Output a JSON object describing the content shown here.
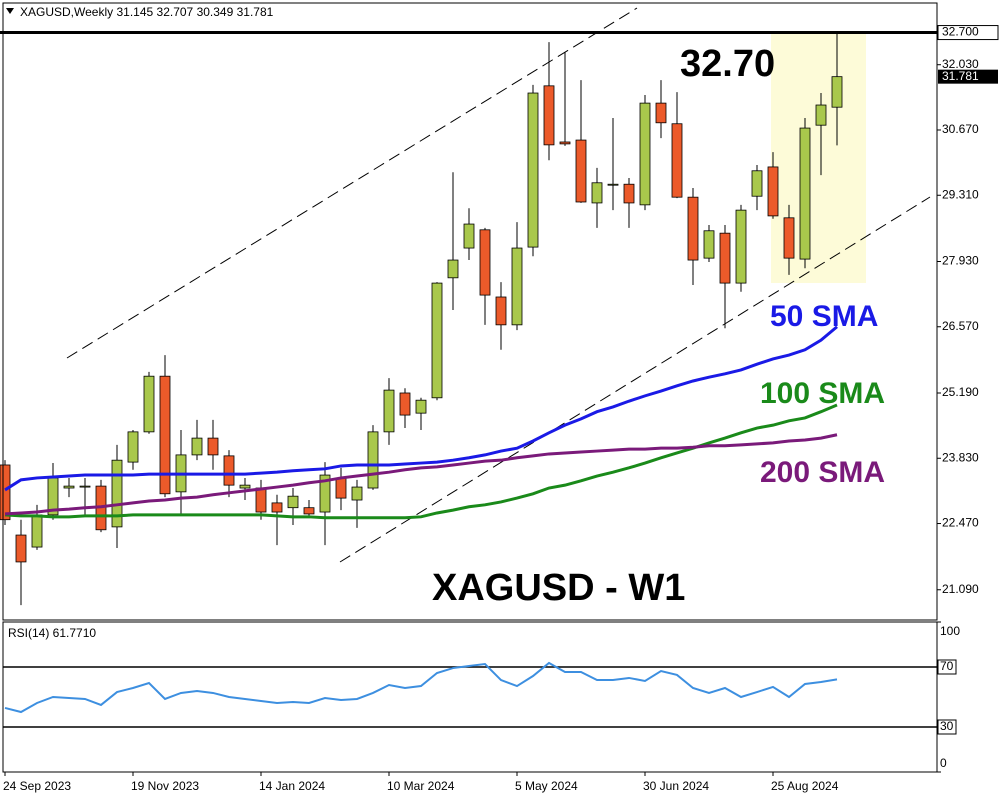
{
  "header": {
    "symbol": "XAGUSD,Weekly"
  },
  "chart_data": {
    "type": "candlestick",
    "categories": [
      "24 Sep 2023",
      null,
      null,
      null,
      null,
      null,
      null,
      null,
      "19 Nov 2023",
      null,
      null,
      null,
      null,
      null,
      null,
      null,
      "14 Jan 2024",
      null,
      null,
      null,
      null,
      null,
      null,
      null,
      "10 Mar 2024",
      null,
      null,
      null,
      null,
      null,
      null,
      null,
      "5 May 2024",
      null,
      null,
      null,
      null,
      null,
      null,
      null,
      "30 Jun 2024",
      null,
      null,
      null,
      null,
      null,
      null,
      null,
      "25 Aug 2024",
      null,
      null,
      null,
      null
    ],
    "open": [
      23.69,
      22.23,
      21.98,
      22.65,
      23.21,
      23.23,
      23.25,
      22.4,
      23.75,
      24.38,
      25.54,
      23.13,
      23.9,
      24.25,
      23.88,
      23.21,
      23.21,
      22.9,
      22.8,
      22.8,
      22.71,
      23.42,
      22.96,
      23.21,
      24.38,
      25.19,
      24.77,
      25.09,
      27.59,
      28.21,
      28.59,
      27.19,
      26.61,
      28.23,
      31.59,
      30.42,
      30.46,
      29.15,
      29.52,
      29.54,
      29.11,
      31.23,
      30.8,
      29.27,
      28.0,
      28.52,
      27.48,
      29.29,
      29.9,
      28.84,
      27.98,
      30.77,
      31.145
    ],
    "high": [
      23.79,
      22.55,
      22.86,
      23.73,
      23.42,
      23.42,
      23.38,
      24.11,
      24.42,
      25.63,
      25.98,
      24.42,
      24.63,
      24.63,
      24.0,
      23.42,
      23.38,
      23.07,
      23.21,
      22.96,
      23.75,
      23.63,
      23.38,
      24.52,
      25.5,
      25.29,
      25.09,
      27.5,
      29.79,
      29.04,
      28.63,
      27.5,
      28.75,
      31.61,
      32.5,
      32.29,
      31.71,
      29.88,
      30.92,
      29.67,
      31.4,
      31.71,
      31.46,
      29.46,
      28.69,
      28.69,
      29.11,
      29.94,
      30.21,
      29.11,
      30.92,
      31.44,
      32.707
    ],
    "low": [
      22.44,
      20.77,
      21.92,
      22.55,
      23.02,
      22.65,
      22.29,
      21.96,
      23.59,
      24.34,
      23.02,
      22.65,
      23.79,
      23.59,
      23.02,
      22.96,
      22.55,
      22.02,
      22.44,
      22.63,
      22.02,
      22.75,
      22.38,
      23.17,
      24.11,
      24.46,
      24.42,
      25.04,
      26.92,
      27.96,
      26.61,
      26.09,
      26.5,
      28.04,
      30.04,
      30.34,
      29.15,
      28.63,
      29.0,
      28.63,
      29.0,
      30.5,
      29.25,
      27.44,
      27.92,
      26.54,
      27.3,
      29.0,
      28.82,
      27.65,
      27.79,
      29.73,
      30.349
    ],
    "close": [
      22.55,
      21.67,
      22.65,
      23.42,
      23.25,
      23.25,
      22.34,
      23.79,
      24.38,
      25.54,
      23.09,
      23.9,
      24.25,
      23.9,
      23.27,
      23.27,
      22.71,
      22.71,
      23.04,
      22.67,
      23.48,
      23.0,
      23.23,
      24.38,
      25.25,
      24.73,
      25.04,
      27.48,
      27.96,
      28.71,
      27.23,
      26.61,
      28.21,
      31.44,
      30.36,
      30.38,
      29.17,
      29.57,
      29.54,
      29.15,
      31.23,
      30.82,
      29.27,
      27.96,
      28.57,
      27.48,
      29.0,
      29.82,
      28.88,
      28.0,
      30.71,
      31.19,
      31.781
    ],
    "up_color": "#a9c84c",
    "down_color": "#ec5a2a",
    "series": [
      {
        "name": "50 SMA",
        "color": "#1a1ae6",
        "values": [
          23.17,
          23.38,
          23.42,
          23.44,
          23.46,
          23.48,
          23.48,
          23.48,
          23.48,
          23.5,
          23.5,
          23.5,
          23.5,
          23.5,
          23.5,
          23.5,
          23.52,
          23.54,
          23.57,
          23.59,
          23.61,
          23.67,
          23.69,
          23.69,
          23.69,
          23.71,
          23.73,
          23.75,
          23.79,
          23.84,
          23.9,
          23.98,
          24.04,
          24.19,
          24.36,
          24.52,
          24.65,
          24.8,
          24.9,
          25.02,
          25.13,
          25.23,
          25.34,
          25.44,
          25.52,
          25.59,
          25.67,
          25.79,
          25.9,
          25.98,
          26.09,
          26.29,
          26.57
        ]
      },
      {
        "name": "100 SMA",
        "color": "#1a8a1a",
        "values": [
          22.65,
          22.63,
          22.63,
          22.61,
          22.61,
          22.63,
          22.63,
          22.63,
          22.65,
          22.65,
          22.65,
          22.65,
          22.65,
          22.65,
          22.65,
          22.65,
          22.65,
          22.63,
          22.61,
          22.61,
          22.59,
          22.59,
          22.59,
          22.59,
          22.59,
          22.59,
          22.61,
          22.69,
          22.75,
          22.82,
          22.86,
          22.92,
          23.0,
          23.09,
          23.21,
          23.27,
          23.36,
          23.46,
          23.54,
          23.63,
          23.73,
          23.84,
          23.94,
          24.04,
          24.15,
          24.25,
          24.36,
          24.46,
          24.52,
          24.61,
          24.67,
          24.8,
          24.94
        ]
      },
      {
        "name": "200 SMA",
        "color": "#7a1a7a",
        "values": [
          22.67,
          22.69,
          22.71,
          22.75,
          22.77,
          22.8,
          22.82,
          22.86,
          22.9,
          22.94,
          22.96,
          23.0,
          23.02,
          23.07,
          23.11,
          23.15,
          23.19,
          23.23,
          23.27,
          23.32,
          23.36,
          23.42,
          23.46,
          23.5,
          23.54,
          23.59,
          23.63,
          23.65,
          23.69,
          23.73,
          23.77,
          23.79,
          23.84,
          23.88,
          23.92,
          23.94,
          23.96,
          23.98,
          24.0,
          24.02,
          24.02,
          24.04,
          24.04,
          24.06,
          24.09,
          24.09,
          24.11,
          24.13,
          24.15,
          24.19,
          24.21,
          24.25,
          24.32
        ]
      }
    ],
    "ylim": [
      20.46,
      32.92
    ],
    "yticks": [
      {
        "value": 32.03,
        "label": "32.030"
      },
      {
        "value": 30.67,
        "label": "30.670"
      },
      {
        "value": 29.31,
        "label": "29.310"
      },
      {
        "value": 27.93,
        "label": "27.930"
      },
      {
        "value": 26.57,
        "label": "26.570"
      },
      {
        "value": 25.19,
        "label": "25.190"
      },
      {
        "value": 23.83,
        "label": "23.830"
      },
      {
        "value": 22.47,
        "label": "22.470"
      },
      {
        "value": 21.09,
        "label": "21.090"
      }
    ],
    "level": {
      "value": 32.7,
      "label": "32.700"
    },
    "annotations": [
      "32.70",
      "XAGUSD - W1"
    ],
    "rsi": {
      "label": "RSI(14) 61.7710",
      "color": "#3d8fe0",
      "values": [
        42.7,
        40.0,
        46.0,
        50.0,
        49.3,
        48.7,
        44.7,
        53.3,
        56.0,
        59.3,
        48.7,
        52.7,
        54.0,
        52.7,
        50.0,
        48.7,
        47.3,
        46.0,
        46.7,
        46.0,
        49.3,
        48.0,
        48.7,
        52.7,
        58.0,
        56.0,
        57.3,
        66.0,
        69.3,
        70.7,
        72.0,
        61.3,
        57.3,
        64.0,
        72.7,
        66.7,
        66.7,
        61.3,
        61.3,
        62.7,
        60.7,
        67.3,
        64.7,
        56.0,
        52.7,
        56.0,
        50.0,
        53.3,
        56.7,
        50.0,
        58.7,
        60.0,
        61.771
      ],
      "ylim": [
        0,
        100
      ],
      "yticks": [
        0,
        30,
        70,
        100
      ],
      "levels": [
        30,
        70
      ]
    }
  }
}
